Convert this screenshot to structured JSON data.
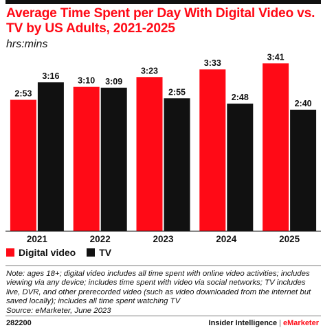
{
  "title": "Average Time Spent per Day With Digital Video vs. TV by US Adults, 2021-2025",
  "subtitle": "hrs:mins",
  "chart_data": {
    "type": "bar",
    "categories": [
      "2021",
      "2022",
      "2023",
      "2024",
      "2025"
    ],
    "series": [
      {
        "name": "Digital video",
        "color": "#ff0a16",
        "values": [
          173,
          190,
          203,
          213,
          221
        ],
        "labels": [
          "2:53",
          "3:10",
          "3:23",
          "3:33",
          "3:41"
        ]
      },
      {
        "name": "TV",
        "color": "#111111",
        "values": [
          196,
          189,
          175,
          168,
          160
        ],
        "labels": [
          "3:16",
          "3:09",
          "2:55",
          "2:48",
          "2:40"
        ]
      }
    ],
    "ylim": [
      0,
      240
    ],
    "grid": false,
    "legend": "bottom-left"
  },
  "legend": {
    "digital_label": "Digital video",
    "tv_label": "TV"
  },
  "note": "Note: ages 18+; digital video includes all time spent with online video activities; includes viewing via any device; includes time spent with video via social networks; TV includes live, DVR, and other prerecorded video (such as video downloaded from the internet but saved locally); includes all time spent watching TV",
  "source": "Source: eMarketer, June 2023",
  "footer": {
    "id": "282200",
    "brand_left": "Insider Intelligence",
    "separator": "|",
    "brand_right": "eMarketer"
  }
}
